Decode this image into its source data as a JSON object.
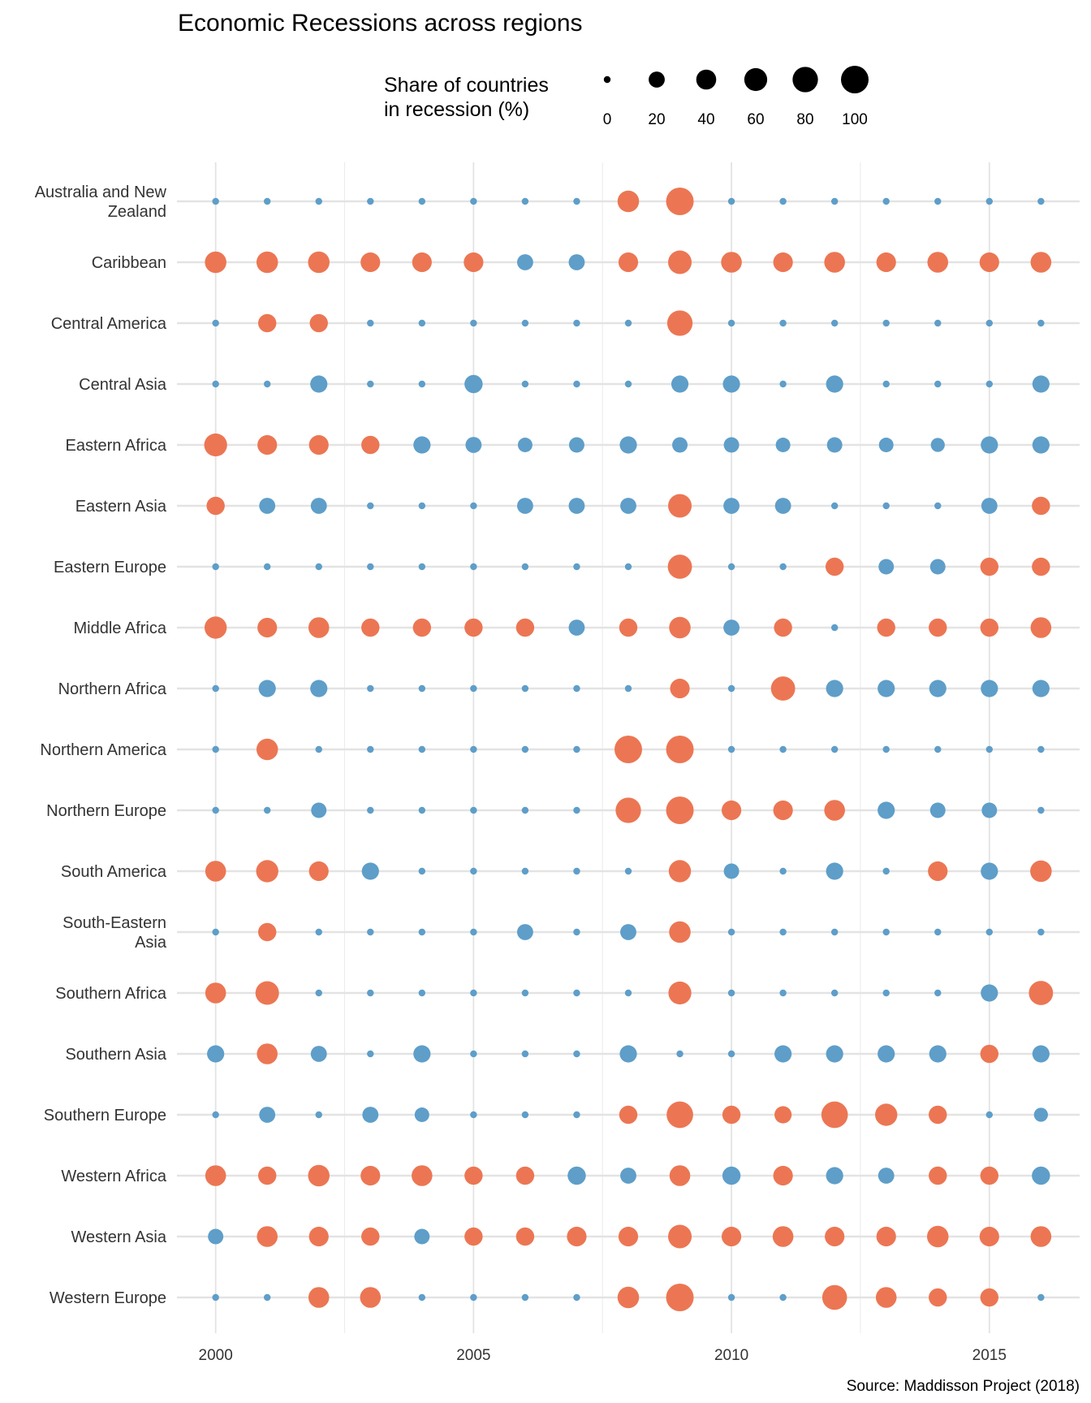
{
  "chart_data": {
    "type": "scatter",
    "title": "Economic Recessions across regions",
    "caption": "Source: Maddisson Project (2018)",
    "size_legend": {
      "title": [
        "Share of countries",
        "in recession (%)"
      ],
      "values": [
        0,
        20,
        40,
        60,
        80,
        100
      ]
    },
    "x_ticks": [
      2000,
      2005,
      2010,
      2015
    ],
    "xlim": [
      1999.25,
      2016.75
    ],
    "colors": {
      "recession": "#ec7653",
      "no_recession": "#5e9ec9"
    },
    "years": [
      2000,
      2001,
      2002,
      2003,
      2004,
      2005,
      2006,
      2007,
      2008,
      2009,
      2010,
      2011,
      2012,
      2013,
      2014,
      2015,
      2016
    ],
    "regions": [
      {
        "name": [
          "Australia and New",
          "Zealand"
        ],
        "share": [
          0,
          0,
          0,
          0,
          0,
          0,
          0,
          0,
          50,
          100,
          0,
          0,
          0,
          0,
          0,
          0,
          0
        ],
        "recession": [
          0,
          0,
          0,
          0,
          0,
          0,
          0,
          0,
          1,
          1,
          0,
          0,
          0,
          0,
          0,
          0,
          0
        ]
      },
      {
        "name": [
          "Caribbean"
        ],
        "share": [
          50,
          50,
          50,
          38,
          38,
          38,
          20,
          20,
          38,
          65,
          45,
          38,
          45,
          38,
          45,
          38,
          45
        ],
        "recession": [
          1,
          1,
          1,
          1,
          1,
          1,
          0,
          0,
          1,
          1,
          1,
          1,
          1,
          1,
          1,
          1,
          1
        ]
      },
      {
        "name": [
          "Central America"
        ],
        "share": [
          0,
          30,
          30,
          0,
          0,
          0,
          0,
          0,
          0,
          80,
          0,
          0,
          0,
          0,
          0,
          0,
          0
        ],
        "recession": [
          0,
          1,
          1,
          0,
          0,
          0,
          0,
          0,
          0,
          1,
          0,
          0,
          0,
          0,
          0,
          0,
          0
        ]
      },
      {
        "name": [
          "Central Asia"
        ],
        "share": [
          0,
          0,
          25,
          0,
          0,
          30,
          0,
          0,
          0,
          25,
          25,
          0,
          25,
          0,
          0,
          0,
          25
        ],
        "recession": [
          0,
          0,
          0,
          0,
          0,
          0,
          0,
          0,
          0,
          0,
          0,
          0,
          0,
          0,
          0,
          0,
          0
        ]
      },
      {
        "name": [
          "Eastern Africa"
        ],
        "share": [
          60,
          38,
          38,
          30,
          25,
          20,
          14,
          17,
          25,
          17,
          17,
          14,
          17,
          14,
          12,
          25,
          25
        ],
        "recession": [
          1,
          1,
          1,
          1,
          0,
          0,
          0,
          0,
          0,
          0,
          0,
          0,
          0,
          0,
          0,
          0,
          0
        ]
      },
      {
        "name": [
          "Eastern Asia"
        ],
        "share": [
          30,
          20,
          20,
          0,
          0,
          0,
          20,
          20,
          20,
          65,
          20,
          20,
          0,
          0,
          0,
          20,
          30
        ],
        "recession": [
          1,
          0,
          0,
          0,
          0,
          0,
          0,
          0,
          0,
          1,
          0,
          0,
          0,
          0,
          0,
          0,
          1
        ]
      },
      {
        "name": [
          "Eastern Europe"
        ],
        "share": [
          0,
          0,
          0,
          0,
          0,
          0,
          0,
          0,
          0,
          70,
          0,
          0,
          30,
          17,
          17,
          30,
          30
        ],
        "recession": [
          0,
          0,
          0,
          0,
          0,
          0,
          0,
          0,
          0,
          1,
          0,
          0,
          1,
          0,
          0,
          1,
          1
        ]
      },
      {
        "name": [
          "Middle Africa"
        ],
        "share": [
          55,
          38,
          45,
          30,
          30,
          30,
          30,
          20,
          30,
          50,
          20,
          30,
          0,
          30,
          30,
          30,
          45
        ],
        "recession": [
          1,
          1,
          1,
          1,
          1,
          1,
          1,
          0,
          1,
          1,
          0,
          1,
          0,
          1,
          1,
          1,
          1
        ]
      },
      {
        "name": [
          "Northern Africa"
        ],
        "share": [
          0,
          25,
          25,
          0,
          0,
          0,
          0,
          0,
          0,
          38,
          0,
          70,
          25,
          25,
          25,
          25,
          25
        ],
        "recession": [
          0,
          0,
          0,
          0,
          0,
          0,
          0,
          0,
          0,
          1,
          0,
          1,
          0,
          0,
          0,
          0,
          0
        ]
      },
      {
        "name": [
          "Northern America"
        ],
        "share": [
          0,
          50,
          0,
          0,
          0,
          0,
          0,
          0,
          100,
          100,
          0,
          0,
          0,
          0,
          0,
          0,
          0
        ],
        "recession": [
          0,
          1,
          0,
          0,
          0,
          0,
          0,
          0,
          1,
          1,
          0,
          0,
          0,
          0,
          0,
          0,
          0
        ]
      },
      {
        "name": [
          "Northern Europe"
        ],
        "share": [
          0,
          0,
          17,
          0,
          0,
          0,
          0,
          0,
          80,
          100,
          38,
          38,
          45,
          25,
          17,
          17,
          0
        ],
        "recession": [
          0,
          0,
          0,
          0,
          0,
          0,
          0,
          0,
          1,
          1,
          1,
          1,
          1,
          0,
          0,
          0,
          0
        ]
      },
      {
        "name": [
          "South America"
        ],
        "share": [
          45,
          55,
          38,
          25,
          0,
          0,
          0,
          0,
          0,
          55,
          17,
          0,
          25,
          0,
          38,
          25,
          50
        ],
        "recession": [
          1,
          1,
          1,
          0,
          0,
          0,
          0,
          0,
          0,
          1,
          0,
          0,
          0,
          0,
          1,
          0,
          1
        ]
      },
      {
        "name": [
          "South-Eastern",
          "Asia"
        ],
        "share": [
          0,
          30,
          0,
          0,
          0,
          0,
          20,
          0,
          20,
          50,
          0,
          0,
          0,
          0,
          0,
          0,
          0
        ],
        "recession": [
          0,
          1,
          0,
          0,
          0,
          0,
          0,
          0,
          0,
          1,
          0,
          0,
          0,
          0,
          0,
          0,
          0
        ]
      },
      {
        "name": [
          "Southern Africa"
        ],
        "share": [
          45,
          65,
          0,
          0,
          0,
          0,
          0,
          0,
          0,
          60,
          0,
          0,
          0,
          0,
          0,
          25,
          70
        ],
        "recession": [
          1,
          1,
          0,
          0,
          0,
          0,
          0,
          0,
          0,
          1,
          0,
          0,
          0,
          0,
          0,
          0,
          1
        ]
      },
      {
        "name": [
          "Southern Asia"
        ],
        "share": [
          25,
          45,
          20,
          0,
          25,
          0,
          0,
          0,
          25,
          0,
          0,
          25,
          25,
          25,
          25,
          30,
          25
        ],
        "recession": [
          0,
          1,
          0,
          0,
          0,
          0,
          0,
          0,
          0,
          0,
          0,
          0,
          0,
          0,
          0,
          1,
          0
        ]
      },
      {
        "name": [
          "Southern Europe"
        ],
        "share": [
          0,
          20,
          0,
          20,
          14,
          0,
          0,
          0,
          30,
          90,
          30,
          25,
          90,
          55,
          30,
          0,
          12
        ],
        "recession": [
          0,
          0,
          0,
          0,
          0,
          0,
          0,
          0,
          1,
          1,
          1,
          1,
          1,
          1,
          1,
          0,
          0
        ]
      },
      {
        "name": [
          "Western Africa"
        ],
        "share": [
          45,
          30,
          50,
          38,
          45,
          30,
          30,
          30,
          20,
          45,
          30,
          38,
          25,
          20,
          30,
          30,
          30
        ],
        "recession": [
          1,
          1,
          1,
          1,
          1,
          1,
          1,
          0,
          0,
          1,
          0,
          1,
          0,
          0,
          1,
          1,
          0
        ]
      },
      {
        "name": [
          "Western Asia"
        ],
        "share": [
          17,
          45,
          38,
          30,
          17,
          30,
          30,
          38,
          38,
          65,
          38,
          45,
          38,
          38,
          50,
          38,
          45
        ],
        "recession": [
          0,
          1,
          1,
          1,
          0,
          1,
          1,
          1,
          1,
          1,
          1,
          1,
          1,
          1,
          1,
          1,
          1
        ]
      },
      {
        "name": [
          "Western Europe"
        ],
        "share": [
          0,
          0,
          45,
          45,
          0,
          0,
          0,
          0,
          50,
          100,
          0,
          0,
          75,
          45,
          30,
          30,
          0
        ],
        "recession": [
          0,
          0,
          1,
          1,
          0,
          0,
          0,
          0,
          1,
          1,
          0,
          0,
          1,
          1,
          1,
          1,
          0
        ]
      }
    ]
  }
}
